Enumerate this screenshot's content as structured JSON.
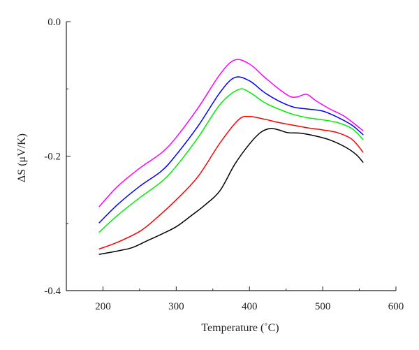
{
  "chart_data": {
    "type": "line",
    "title": "",
    "xlabel": "Temperature (˚C)",
    "ylabel": "ΔS (μV/K)",
    "xlim": [
      150,
      600
    ],
    "ylim": [
      -0.4,
      0.0
    ],
    "x_ticks": [
      200,
      300,
      400,
      500,
      600
    ],
    "y_ticks": [
      0.0,
      -0.2,
      -0.4
    ],
    "x_tick_labels": [
      "200",
      "300",
      "400",
      "500",
      "600"
    ],
    "y_tick_labels": [
      "0.0",
      "-0.2",
      "-0.4"
    ],
    "grid": false,
    "legend": "none",
    "series": [
      {
        "color": "#ff00ff",
        "points": [
          [
            195,
            -0.275
          ],
          [
            220,
            -0.245
          ],
          [
            250,
            -0.218
          ],
          [
            280,
            -0.195
          ],
          [
            300,
            -0.172
          ],
          [
            330,
            -0.128
          ],
          [
            360,
            -0.078
          ],
          [
            380,
            -0.057
          ],
          [
            400,
            -0.063
          ],
          [
            420,
            -0.082
          ],
          [
            440,
            -0.1
          ],
          [
            455,
            -0.111
          ],
          [
            465,
            -0.112
          ],
          [
            478,
            -0.108
          ],
          [
            490,
            -0.117
          ],
          [
            510,
            -0.13
          ],
          [
            530,
            -0.141
          ],
          [
            555,
            -0.162
          ]
        ]
      },
      {
        "color": "#0000ff",
        "points": [
          [
            195,
            -0.299
          ],
          [
            220,
            -0.272
          ],
          [
            250,
            -0.245
          ],
          [
            280,
            -0.222
          ],
          [
            300,
            -0.198
          ],
          [
            330,
            -0.155
          ],
          [
            360,
            -0.105
          ],
          [
            380,
            -0.083
          ],
          [
            400,
            -0.088
          ],
          [
            420,
            -0.105
          ],
          [
            440,
            -0.118
          ],
          [
            460,
            -0.127
          ],
          [
            480,
            -0.13
          ],
          [
            500,
            -0.133
          ],
          [
            520,
            -0.142
          ],
          [
            540,
            -0.154
          ],
          [
            555,
            -0.168
          ]
        ]
      },
      {
        "color": "#00ee00",
        "points": [
          [
            195,
            -0.313
          ],
          [
            220,
            -0.288
          ],
          [
            250,
            -0.262
          ],
          [
            280,
            -0.238
          ],
          [
            300,
            -0.215
          ],
          [
            330,
            -0.172
          ],
          [
            360,
            -0.123
          ],
          [
            385,
            -0.101
          ],
          [
            400,
            -0.105
          ],
          [
            420,
            -0.12
          ],
          [
            440,
            -0.13
          ],
          [
            460,
            -0.138
          ],
          [
            480,
            -0.143
          ],
          [
            500,
            -0.146
          ],
          [
            520,
            -0.15
          ],
          [
            540,
            -0.159
          ],
          [
            555,
            -0.175
          ]
        ]
      },
      {
        "color": "#ff0000",
        "points": [
          [
            195,
            -0.338
          ],
          [
            220,
            -0.328
          ],
          [
            250,
            -0.312
          ],
          [
            270,
            -0.295
          ],
          [
            300,
            -0.265
          ],
          [
            330,
            -0.23
          ],
          [
            360,
            -0.18
          ],
          [
            385,
            -0.146
          ],
          [
            400,
            -0.141
          ],
          [
            420,
            -0.145
          ],
          [
            440,
            -0.15
          ],
          [
            460,
            -0.154
          ],
          [
            480,
            -0.158
          ],
          [
            500,
            -0.161
          ],
          [
            520,
            -0.165
          ],
          [
            540,
            -0.175
          ],
          [
            555,
            -0.194
          ]
        ]
      },
      {
        "color": "#000000",
        "points": [
          [
            195,
            -0.346
          ],
          [
            220,
            -0.341
          ],
          [
            240,
            -0.336
          ],
          [
            260,
            -0.326
          ],
          [
            280,
            -0.316
          ],
          [
            300,
            -0.305
          ],
          [
            320,
            -0.289
          ],
          [
            340,
            -0.272
          ],
          [
            360,
            -0.251
          ],
          [
            380,
            -0.212
          ],
          [
            400,
            -0.182
          ],
          [
            415,
            -0.165
          ],
          [
            428,
            -0.159
          ],
          [
            440,
            -0.161
          ],
          [
            452,
            -0.165
          ],
          [
            470,
            -0.166
          ],
          [
            490,
            -0.17
          ],
          [
            510,
            -0.176
          ],
          [
            530,
            -0.186
          ],
          [
            545,
            -0.197
          ],
          [
            555,
            -0.209
          ]
        ]
      }
    ]
  }
}
